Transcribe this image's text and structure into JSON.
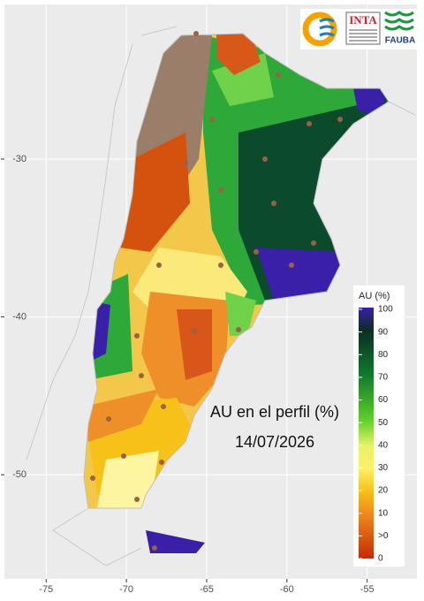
{
  "map": {
    "title": "AU en el perfil (%)",
    "date": "14/07/2026",
    "xlim": [
      -77.6,
      -51.9
    ],
    "ylim": [
      -56.6,
      -20.2
    ],
    "xticks": [
      -75,
      -70,
      -65,
      -60,
      -55
    ],
    "yticks": [
      -30,
      -40,
      -50
    ],
    "legend": {
      "title": "AU (%)",
      "ticks": [
        100,
        90,
        80,
        70,
        60,
        50,
        40,
        30,
        20,
        10,
        {
          "value": 0.1,
          "label": ">0"
        },
        0
      ]
    }
  },
  "logos": {
    "inta": "INTA",
    "fauba": "FAUBA"
  }
}
